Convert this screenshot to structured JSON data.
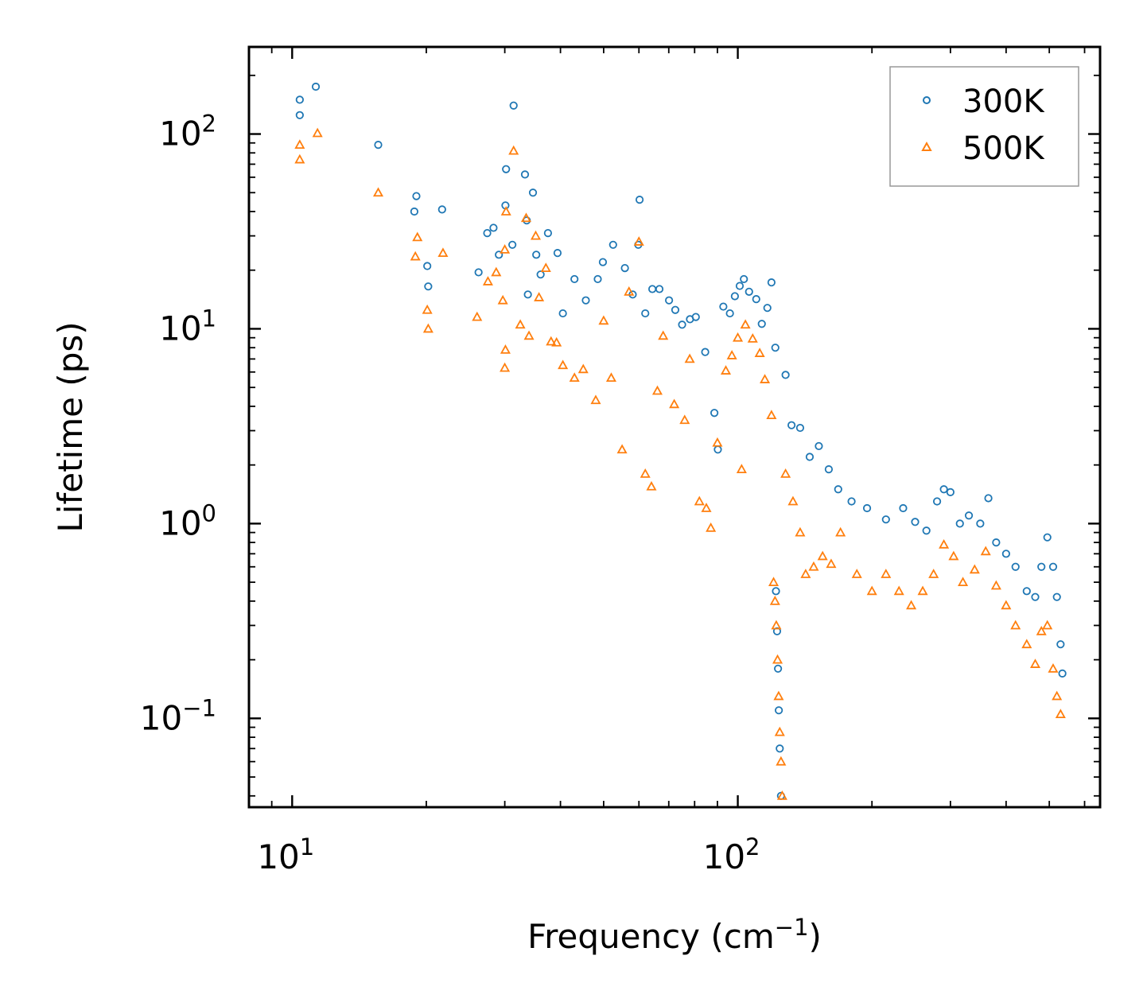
{
  "chart_data": {
    "type": "scatter",
    "title": "",
    "xlabel": "Frequency (cm",
    "xlabel_sup": "−1",
    "xlabel_suffix": ")",
    "ylabel": "Lifetime (ps)",
    "xscale": "log",
    "yscale": "log",
    "xlim": [
      8,
      650
    ],
    "ylim": [
      0.035,
      280
    ],
    "x_ticks": [
      {
        "value": 10,
        "base": "10",
        "exp": "1"
      },
      {
        "value": 100,
        "base": "10",
        "exp": "2"
      }
    ],
    "y_ticks": [
      {
        "value": 0.1,
        "base": "10",
        "exp": "−1"
      },
      {
        "value": 1,
        "base": "10",
        "exp": "0"
      },
      {
        "value": 10,
        "base": "10",
        "exp": "1"
      },
      {
        "value": 100,
        "base": "10",
        "exp": "2"
      }
    ],
    "legend_position": "top-right",
    "colors": {
      "series_300K": "#1f77b4",
      "series_500K": "#ff7f0e"
    },
    "series": [
      {
        "name": "300K",
        "marker": "circle",
        "color": "#1f77b4",
        "points": [
          [
            10.4,
            150
          ],
          [
            10.4,
            125
          ],
          [
            11.3,
            175
          ],
          [
            15.6,
            88
          ],
          [
            19.0,
            48
          ],
          [
            18.8,
            40
          ],
          [
            20.1,
            21
          ],
          [
            20.2,
            16.5
          ],
          [
            21.7,
            41
          ],
          [
            26.2,
            19.5
          ],
          [
            27.4,
            31
          ],
          [
            28.3,
            33
          ],
          [
            29.1,
            24
          ],
          [
            30.1,
            43
          ],
          [
            30.2,
            66
          ],
          [
            31.4,
            140
          ],
          [
            31.2,
            27
          ],
          [
            33.3,
            62
          ],
          [
            33.6,
            36
          ],
          [
            33.8,
            15
          ],
          [
            34.7,
            50
          ],
          [
            35.3,
            24
          ],
          [
            36.1,
            19
          ],
          [
            37.5,
            31
          ],
          [
            39.4,
            24.5
          ],
          [
            40.5,
            12
          ],
          [
            43.0,
            18
          ],
          [
            45.6,
            14
          ],
          [
            49.8,
            22
          ],
          [
            48.5,
            18
          ],
          [
            52.5,
            27
          ],
          [
            55.8,
            20.5
          ],
          [
            58.1,
            15
          ],
          [
            60.2,
            46
          ],
          [
            59.8,
            27
          ],
          [
            62.0,
            12
          ],
          [
            64.3,
            16
          ],
          [
            66.7,
            16
          ],
          [
            70.1,
            14
          ],
          [
            72.4,
            12.5
          ],
          [
            75.0,
            10.5
          ],
          [
            78.1,
            11.2
          ],
          [
            80.5,
            11.5
          ],
          [
            84.5,
            7.6
          ],
          [
            88.6,
            3.7
          ],
          [
            90.2,
            2.4
          ],
          [
            92.8,
            13
          ],
          [
            96.0,
            12
          ],
          [
            98.5,
            14.7
          ],
          [
            101.0,
            16.6
          ],
          [
            103.2,
            18
          ],
          [
            106.0,
            15.5
          ],
          [
            110.0,
            14.2
          ],
          [
            113.2,
            10.6
          ],
          [
            116.5,
            12.8
          ],
          [
            119.0,
            17.3
          ],
          [
            121.4,
            8.0
          ],
          [
            121.8,
            0.45
          ],
          [
            122.5,
            0.28
          ],
          [
            123.1,
            0.18
          ],
          [
            123.6,
            0.11
          ],
          [
            124.2,
            0.07
          ],
          [
            125.0,
            0.04
          ],
          [
            128.0,
            5.8
          ],
          [
            132.0,
            3.2
          ],
          [
            138.0,
            3.1
          ],
          [
            145.0,
            2.2
          ],
          [
            152.0,
            2.5
          ],
          [
            160.0,
            1.9
          ],
          [
            168.0,
            1.5
          ],
          [
            180.0,
            1.3
          ],
          [
            195.0,
            1.2
          ],
          [
            215.0,
            1.05
          ],
          [
            235.0,
            1.2
          ],
          [
            250.0,
            1.02
          ],
          [
            265.0,
            0.92
          ],
          [
            280.0,
            1.3
          ],
          [
            290.0,
            1.5
          ],
          [
            300.0,
            1.45
          ],
          [
            315.0,
            1.0
          ],
          [
            330.0,
            1.1
          ],
          [
            350.0,
            1.0
          ],
          [
            365.0,
            1.35
          ],
          [
            380.0,
            0.8
          ],
          [
            400.0,
            0.7
          ],
          [
            420.0,
            0.6
          ],
          [
            445.0,
            0.45
          ],
          [
            465.0,
            0.42
          ],
          [
            480.0,
            0.6
          ],
          [
            495.0,
            0.85
          ],
          [
            510.0,
            0.6
          ],
          [
            520.0,
            0.42
          ],
          [
            530.0,
            0.24
          ],
          [
            535.0,
            0.17
          ]
        ]
      },
      {
        "name": "500K",
        "marker": "triangle",
        "color": "#ff7f0e",
        "points": [
          [
            10.4,
            88
          ],
          [
            10.4,
            74
          ],
          [
            11.4,
            101
          ],
          [
            15.6,
            50
          ],
          [
            18.9,
            23.5
          ],
          [
            19.1,
            29.5
          ],
          [
            20.1,
            12.5
          ],
          [
            20.2,
            10.0
          ],
          [
            21.8,
            24.5
          ],
          [
            26.0,
            11.5
          ],
          [
            27.5,
            17.5
          ],
          [
            28.7,
            19.5
          ],
          [
            29.7,
            14
          ],
          [
            30.0,
            6.3
          ],
          [
            30.1,
            7.8
          ],
          [
            30.2,
            40
          ],
          [
            30.0,
            25.5
          ],
          [
            31.4,
            82
          ],
          [
            32.5,
            10.5
          ],
          [
            33.5,
            37
          ],
          [
            34.0,
            9.2
          ],
          [
            35.2,
            30
          ],
          [
            35.8,
            14.5
          ],
          [
            37.1,
            20.5
          ],
          [
            38.1,
            8.6
          ],
          [
            39.2,
            8.5
          ],
          [
            40.5,
            6.5
          ],
          [
            43.0,
            5.6
          ],
          [
            45.0,
            6.2
          ],
          [
            48.0,
            4.3
          ],
          [
            50.0,
            11
          ],
          [
            52.0,
            5.6
          ],
          [
            55.0,
            2.4
          ],
          [
            57.0,
            15.5
          ],
          [
            60.0,
            28
          ],
          [
            62.0,
            1.8
          ],
          [
            64.0,
            1.55
          ],
          [
            66.0,
            4.8
          ],
          [
            68.0,
            9.2
          ],
          [
            72.0,
            4.1
          ],
          [
            76.0,
            3.4
          ],
          [
            78.0,
            7.0
          ],
          [
            82.0,
            1.3
          ],
          [
            85.0,
            1.2
          ],
          [
            87.0,
            0.95
          ],
          [
            90.0,
            2.6
          ],
          [
            94.0,
            6.1
          ],
          [
            97.0,
            7.3
          ],
          [
            100.0,
            9.0
          ],
          [
            102.0,
            1.9
          ],
          [
            104.0,
            10.5
          ],
          [
            108.0,
            8.9
          ],
          [
            112.0,
            7.5
          ],
          [
            115.0,
            5.5
          ],
          [
            119.0,
            3.6
          ],
          [
            120.3,
            0.5
          ],
          [
            121.2,
            0.4
          ],
          [
            122.0,
            0.3
          ],
          [
            122.8,
            0.2
          ],
          [
            123.5,
            0.13
          ],
          [
            124.2,
            0.085
          ],
          [
            125.0,
            0.06
          ],
          [
            125.8,
            0.04
          ],
          [
            128.0,
            1.8
          ],
          [
            133.0,
            1.3
          ],
          [
            138.0,
            0.9
          ],
          [
            142.0,
            0.55
          ],
          [
            148.0,
            0.6
          ],
          [
            155.0,
            0.68
          ],
          [
            162.0,
            0.62
          ],
          [
            170.0,
            0.9
          ],
          [
            185.0,
            0.55
          ],
          [
            200.0,
            0.45
          ],
          [
            215.0,
            0.55
          ],
          [
            230.0,
            0.45
          ],
          [
            245.0,
            0.38
          ],
          [
            260.0,
            0.45
          ],
          [
            275.0,
            0.55
          ],
          [
            290.0,
            0.78
          ],
          [
            305.0,
            0.68
          ],
          [
            320.0,
            0.5
          ],
          [
            340.0,
            0.58
          ],
          [
            360.0,
            0.72
          ],
          [
            380.0,
            0.48
          ],
          [
            400.0,
            0.38
          ],
          [
            420.0,
            0.3
          ],
          [
            445.0,
            0.24
          ],
          [
            465.0,
            0.19
          ],
          [
            480.0,
            0.28
          ],
          [
            495.0,
            0.3
          ],
          [
            510.0,
            0.18
          ],
          [
            520.0,
            0.13
          ],
          [
            530.0,
            0.105
          ]
        ]
      }
    ]
  }
}
